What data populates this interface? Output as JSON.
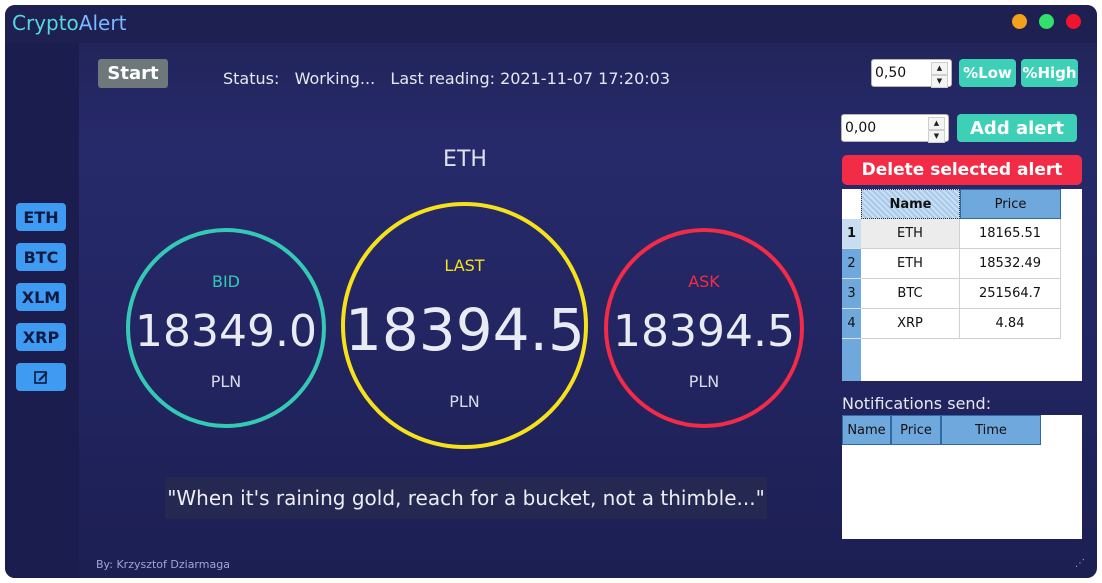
{
  "app": {
    "title_part1": "Crypto",
    "title_part2": "Alert",
    "author": "By: Krzysztof Dziarmaga"
  },
  "window_controls": {
    "minimize_color": "#f3a01c",
    "maximize_color": "#32e06a",
    "close_color": "#f0142c"
  },
  "sidebar": {
    "coins": [
      "ETH",
      "BTC",
      "XLM",
      "XRP"
    ],
    "edit_icon": "edit-icon"
  },
  "toolbar": {
    "start_label": "Start",
    "status_text": "Status:   Working...   Last reading: 2021-11-07 17:20:03"
  },
  "main": {
    "coin": "ETH",
    "bid": {
      "label": "BID",
      "value": "18349.0",
      "unit": "PLN",
      "color": "#35c9b5"
    },
    "last": {
      "label": "LAST",
      "value": "18394.51",
      "unit": "PLN",
      "color": "#f5e21b"
    },
    "ask": {
      "label": "ASK",
      "value": "18394.5",
      "unit": "PLN",
      "color": "#f22b47"
    },
    "quote": "\"When it's raining gold, reach for a bucket, not a thimble...\""
  },
  "percent": {
    "value": "0,50",
    "low_label": "%Low",
    "high_label": "%High"
  },
  "alert_form": {
    "value": "0,00",
    "add_label": "Add alert",
    "delete_label": "Delete selected alert"
  },
  "alerts_table": {
    "headers": [
      "Name",
      "Price"
    ],
    "rows": [
      {
        "index": "1",
        "name": "ETH",
        "price": "18165.51"
      },
      {
        "index": "2",
        "name": "ETH",
        "price": "18532.49"
      },
      {
        "index": "3",
        "name": "BTC",
        "price": "251564.7"
      },
      {
        "index": "4",
        "name": "XRP",
        "price": "4.84"
      }
    ]
  },
  "notifications": {
    "label": "Notifications send:",
    "headers": [
      "Name",
      "Price",
      "Time"
    ]
  },
  "colors": {
    "accent_teal": "#3dd0b6",
    "accent_blue": "#3f9af2",
    "danger_red": "#f22b47"
  }
}
